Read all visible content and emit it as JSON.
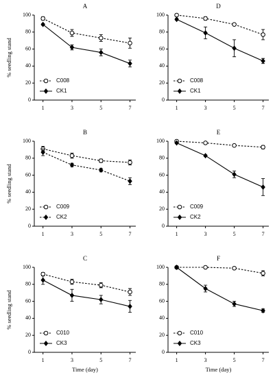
{
  "chart_data": [
    {
      "type": "line",
      "title": "A",
      "y_label": "% seedling stand",
      "x": [
        1,
        3,
        5,
        7
      ],
      "xlim": [
        0.4,
        7.4
      ],
      "xticks": [
        1,
        3,
        5,
        7
      ],
      "ylim": [
        0,
        100
      ],
      "yticks": [
        0,
        20,
        40,
        60,
        80,
        100
      ],
      "legend": "lower left",
      "series": [
        {
          "name": "C008",
          "color": "#000000",
          "style": "dashed",
          "marker": "circle-open",
          "values": [
            96,
            79,
            73,
            67
          ],
          "errors": [
            2,
            4,
            4,
            6
          ]
        },
        {
          "name": "CK1",
          "color": "#000000",
          "style": "solid",
          "marker": "diamond",
          "values": [
            89,
            62,
            56,
            43
          ],
          "errors": [
            1,
            3,
            4,
            4
          ]
        }
      ]
    },
    {
      "type": "line",
      "title": "B",
      "y_label": "% seedling stand",
      "x": [
        1,
        3,
        5,
        7
      ],
      "xlim": [
        0.4,
        7.4
      ],
      "xticks": [
        1,
        3,
        5,
        7
      ],
      "ylim": [
        0,
        100
      ],
      "yticks": [
        0,
        20,
        40,
        60,
        80,
        100
      ],
      "legend": "lower left",
      "series": [
        {
          "name": "C009",
          "color": "#000000",
          "style": "dashed",
          "marker": "circle-open",
          "values": [
            91,
            83,
            77,
            75
          ],
          "errors": [
            3,
            3,
            2,
            3
          ]
        },
        {
          "name": "CK2",
          "color": "#000000",
          "style": "dashed",
          "marker": "diamond",
          "values": [
            87,
            72,
            66,
            53
          ],
          "errors": [
            4,
            2,
            2,
            4
          ]
        }
      ]
    },
    {
      "type": "line",
      "title": "C",
      "y_label": "% seedling stand",
      "x_label": "Time (day)",
      "x": [
        1,
        3,
        5,
        7
      ],
      "xlim": [
        0.4,
        7.4
      ],
      "xticks": [
        1,
        3,
        5,
        7
      ],
      "ylim": [
        0,
        100
      ],
      "yticks": [
        0,
        20,
        40,
        60,
        80,
        100
      ],
      "legend": "lower left",
      "series": [
        {
          "name": "C010",
          "color": "#000000",
          "style": "dashed",
          "marker": "circle-open",
          "values": [
            92,
            83,
            79,
            71
          ],
          "errors": [
            2,
            3,
            3,
            4
          ]
        },
        {
          "name": "CK3",
          "color": "#000000",
          "style": "solid",
          "marker": "diamond",
          "values": [
            85,
            67,
            62,
            54
          ],
          "errors": [
            5,
            7,
            5,
            7
          ]
        }
      ]
    },
    {
      "type": "line",
      "title": "D",
      "x": [
        1,
        3,
        5,
        7
      ],
      "xlim": [
        0.4,
        7.4
      ],
      "xticks": [
        1,
        3,
        5,
        7
      ],
      "ylim": [
        0,
        100
      ],
      "yticks": [
        0,
        20,
        40,
        60,
        80,
        100
      ],
      "legend": "lower left",
      "series": [
        {
          "name": "C008",
          "color": "#000000",
          "style": "dashed",
          "marker": "circle-open",
          "values": [
            100,
            96,
            89,
            77
          ],
          "errors": [
            1,
            2,
            1,
            6
          ]
        },
        {
          "name": "CK1",
          "color": "#000000",
          "style": "solid",
          "marker": "diamond",
          "values": [
            95,
            79,
            61,
            46
          ],
          "errors": [
            1,
            7,
            10,
            3
          ]
        }
      ]
    },
    {
      "type": "line",
      "title": "E",
      "x": [
        1,
        3,
        5,
        7
      ],
      "xlim": [
        0.4,
        7.4
      ],
      "xticks": [
        1,
        3,
        5,
        7
      ],
      "ylim": [
        0,
        100
      ],
      "yticks": [
        0,
        20,
        40,
        60,
        80,
        100
      ],
      "legend": "lower left",
      "series": [
        {
          "name": "C009",
          "color": "#000000",
          "style": "dashed",
          "marker": "circle-open",
          "values": [
            100,
            98,
            95,
            93
          ],
          "errors": [
            1,
            1,
            1,
            2
          ]
        },
        {
          "name": "CK2",
          "color": "#000000",
          "style": "solid",
          "marker": "diamond",
          "values": [
            98,
            83,
            61,
            46
          ],
          "errors": [
            1,
            1,
            4,
            10
          ]
        }
      ]
    },
    {
      "type": "line",
      "title": "F",
      "x_label": "Time (day)",
      "x": [
        1,
        3,
        5,
        7
      ],
      "xlim": [
        0.4,
        7.4
      ],
      "xticks": [
        1,
        3,
        5,
        7
      ],
      "ylim": [
        0,
        100
      ],
      "yticks": [
        0,
        20,
        40,
        60,
        80,
        100
      ],
      "legend": "lower left",
      "series": [
        {
          "name": "C010",
          "color": "#000000",
          "style": "dashed",
          "marker": "circle-open",
          "values": [
            100,
            100,
            99,
            93
          ],
          "errors": [
            0,
            1,
            1,
            3
          ]
        },
        {
          "name": "CK3",
          "color": "#000000",
          "style": "solid",
          "marker": "diamond",
          "values": [
            100,
            75,
            57,
            49
          ],
          "errors": [
            1,
            4,
            3,
            2
          ]
        }
      ]
    }
  ]
}
